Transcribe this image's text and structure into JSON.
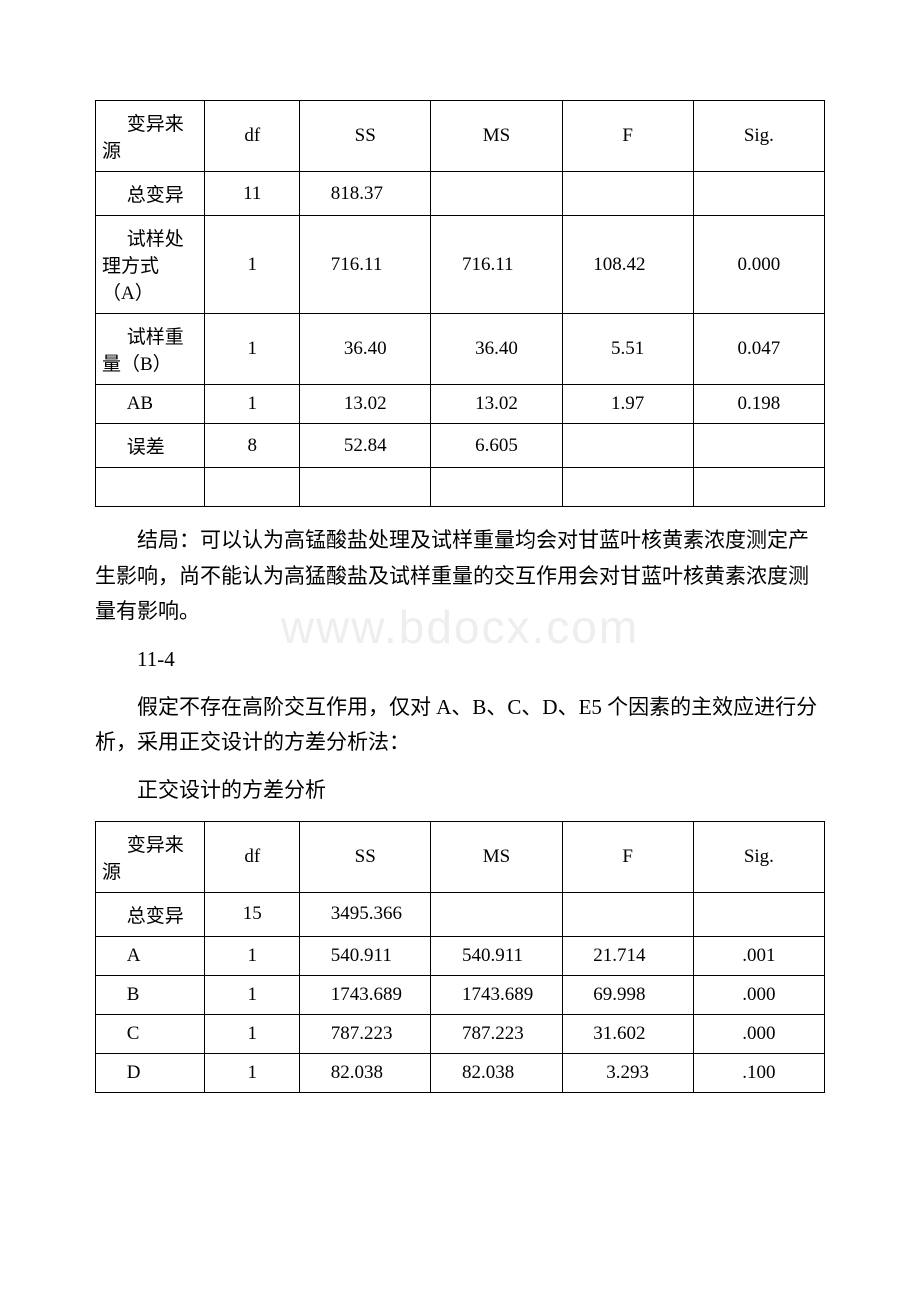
{
  "watermark": "www.bdocx.com",
  "table1": {
    "header": [
      "变异来源",
      "df",
      "SS",
      "MS",
      "F",
      "Sig."
    ],
    "rows": [
      [
        "总变异",
        "11",
        "818.37",
        "",
        "",
        ""
      ],
      [
        "试样处理方式（A）",
        "1",
        "716.11",
        "716.11",
        "108.42",
        "0.000"
      ],
      [
        "试样重量（B）",
        "1",
        "36.40",
        "36.40",
        "5.51",
        "0.047"
      ],
      [
        "AB",
        "1",
        "13.02",
        "13.02",
        "1.97",
        "0.198"
      ],
      [
        "误差",
        "8",
        "52.84",
        "6.605",
        "",
        ""
      ],
      [
        "",
        "",
        "",
        "",
        "",
        ""
      ]
    ]
  },
  "para1": "结局：可以认为高锰酸盐处理及试样重量均会对甘蓝叶核黄素浓度测定产生影响，尚不能认为高猛酸盐及试样重量的交互作用会对甘蓝叶核黄素浓度测量有影响。",
  "section": "11-4",
  "para2": "假定不存在高阶交互作用，仅对 A、B、C、D、E5 个因素的主效应进行分析，采用正交设计的方差分析法：",
  "caption2": "正交设计的方差分析",
  "table2": {
    "header": [
      "变异来源",
      "df",
      "SS",
      "MS",
      "F",
      "Sig."
    ],
    "rows": [
      [
        "总变异",
        "15",
        "3495.366",
        "",
        "",
        ""
      ],
      [
        "A",
        "1",
        "540.911",
        "540.911",
        "21.714",
        ".001"
      ],
      [
        "B",
        "1",
        "1743.689",
        "1743.689",
        "69.998",
        ".000"
      ],
      [
        "C",
        "1",
        "787.223",
        "787.223",
        "31.602",
        ".000"
      ],
      [
        "D",
        "1",
        "82.038",
        "82.038",
        "3.293",
        ".100"
      ]
    ]
  }
}
